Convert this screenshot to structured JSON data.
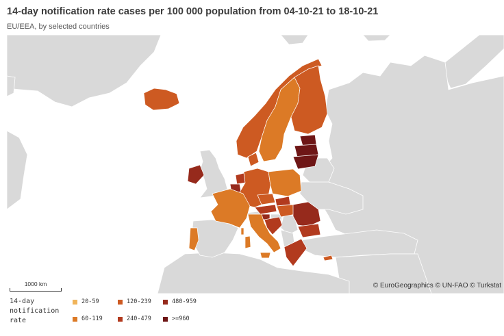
{
  "header": {
    "title": "14-day notification rate cases per 100 000 population from 04-10-21 to 18-10-21",
    "subtitle": "EU/EEA, by selected countries"
  },
  "map": {
    "scale_label": "1000 km",
    "credits": "© EuroGeographics © UN-FAO © Turkstat",
    "no_data_color": "#d9d9d9",
    "sea_color": "#ffffff"
  },
  "legend": {
    "title": "14-day notification rate",
    "items": [
      {
        "label": "20-59",
        "color": "#f0b45a"
      },
      {
        "label": "60-119",
        "color": "#dc7a26"
      },
      {
        "label": "120-239",
        "color": "#cd5a22"
      },
      {
        "label": "240-479",
        "color": "#b23a1e"
      },
      {
        "label": "480-959",
        "color": "#962a1c"
      },
      {
        "label": ">=960",
        "color": "#6e1616"
      }
    ]
  },
  "countries": [
    {
      "name": "Iceland",
      "category": "120-239"
    },
    {
      "name": "Norway",
      "category": "120-239"
    },
    {
      "name": "Sweden",
      "category": "60-119"
    },
    {
      "name": "Finland",
      "category": "120-239"
    },
    {
      "name": "Estonia",
      "category": ">=960"
    },
    {
      "name": "Latvia",
      "category": ">=960"
    },
    {
      "name": "Lithuania",
      "category": ">=960"
    },
    {
      "name": "Ireland",
      "category": "480-959"
    },
    {
      "name": "Denmark",
      "category": "120-239"
    },
    {
      "name": "Netherlands",
      "category": "240-479"
    },
    {
      "name": "Belgium",
      "category": "480-959"
    },
    {
      "name": "Luxembourg",
      "category": "120-239"
    },
    {
      "name": "Germany",
      "category": "120-239"
    },
    {
      "name": "Poland",
      "category": "60-119"
    },
    {
      "name": "Czechia",
      "category": "120-239"
    },
    {
      "name": "Slovakia",
      "category": "240-479"
    },
    {
      "name": "Austria",
      "category": "240-479"
    },
    {
      "name": "Hungary",
      "category": "120-239"
    },
    {
      "name": "Slovenia",
      "category": "480-959"
    },
    {
      "name": "Croatia",
      "category": "240-479"
    },
    {
      "name": "Romania",
      "category": "480-959"
    },
    {
      "name": "Bulgaria",
      "category": "240-479"
    },
    {
      "name": "Greece",
      "category": "240-479"
    },
    {
      "name": "Cyprus",
      "category": "120-239"
    },
    {
      "name": "France",
      "category": "60-119"
    },
    {
      "name": "Portugal",
      "category": "60-119"
    },
    {
      "name": "Spain",
      "category": "no data"
    },
    {
      "name": "Italy",
      "category": "60-119"
    },
    {
      "name": "Malta",
      "category": "60-119"
    },
    {
      "name": "Liechtenstein",
      "category": "240-479"
    }
  ]
}
